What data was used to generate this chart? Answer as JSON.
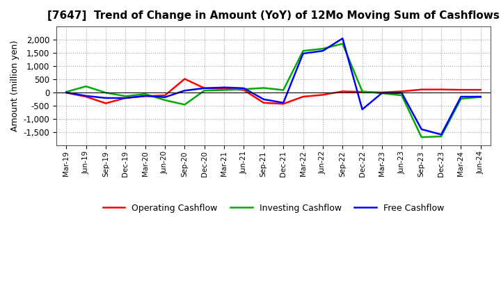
{
  "title": "[7647]  Trend of Change in Amount (YoY) of 12Mo Moving Sum of Cashflows",
  "ylabel": "Amount (million yen)",
  "x_labels": [
    "Mar-19",
    "Jun-19",
    "Sep-19",
    "Dec-19",
    "Mar-20",
    "Jun-20",
    "Sep-20",
    "Dec-20",
    "Mar-21",
    "Jun-21",
    "Sep-21",
    "Dec-21",
    "Mar-22",
    "Jun-22",
    "Sep-22",
    "Dec-22",
    "Mar-23",
    "Jun-23",
    "Sep-23",
    "Dec-23",
    "Mar-24",
    "Jun-24"
  ],
  "operating": [
    0,
    -150,
    -400,
    -200,
    -130,
    -100,
    520,
    170,
    150,
    100,
    -380,
    -420,
    -150,
    -80,
    50,
    30,
    10,
    50,
    120,
    120,
    110,
    110
  ],
  "investing": [
    30,
    240,
    0,
    -130,
    -50,
    -280,
    -450,
    80,
    100,
    130,
    180,
    100,
    1580,
    1660,
    1850,
    50,
    -20,
    -100,
    -1680,
    -1650,
    -230,
    -160
  ],
  "free": [
    10,
    -120,
    -200,
    -200,
    -120,
    -170,
    80,
    170,
    200,
    170,
    -250,
    -380,
    1480,
    1580,
    2050,
    -630,
    -10,
    -10,
    -1380,
    -1580,
    -150,
    -150
  ],
  "operating_color": "#ff0000",
  "investing_color": "#00aa00",
  "free_color": "#0000ff",
  "ylim": [
    -2000,
    2500
  ],
  "yticks": [
    -1500,
    -1000,
    -500,
    0,
    500,
    1000,
    1500,
    2000
  ],
  "background_color": "#ffffff",
  "grid_color": "#999999"
}
